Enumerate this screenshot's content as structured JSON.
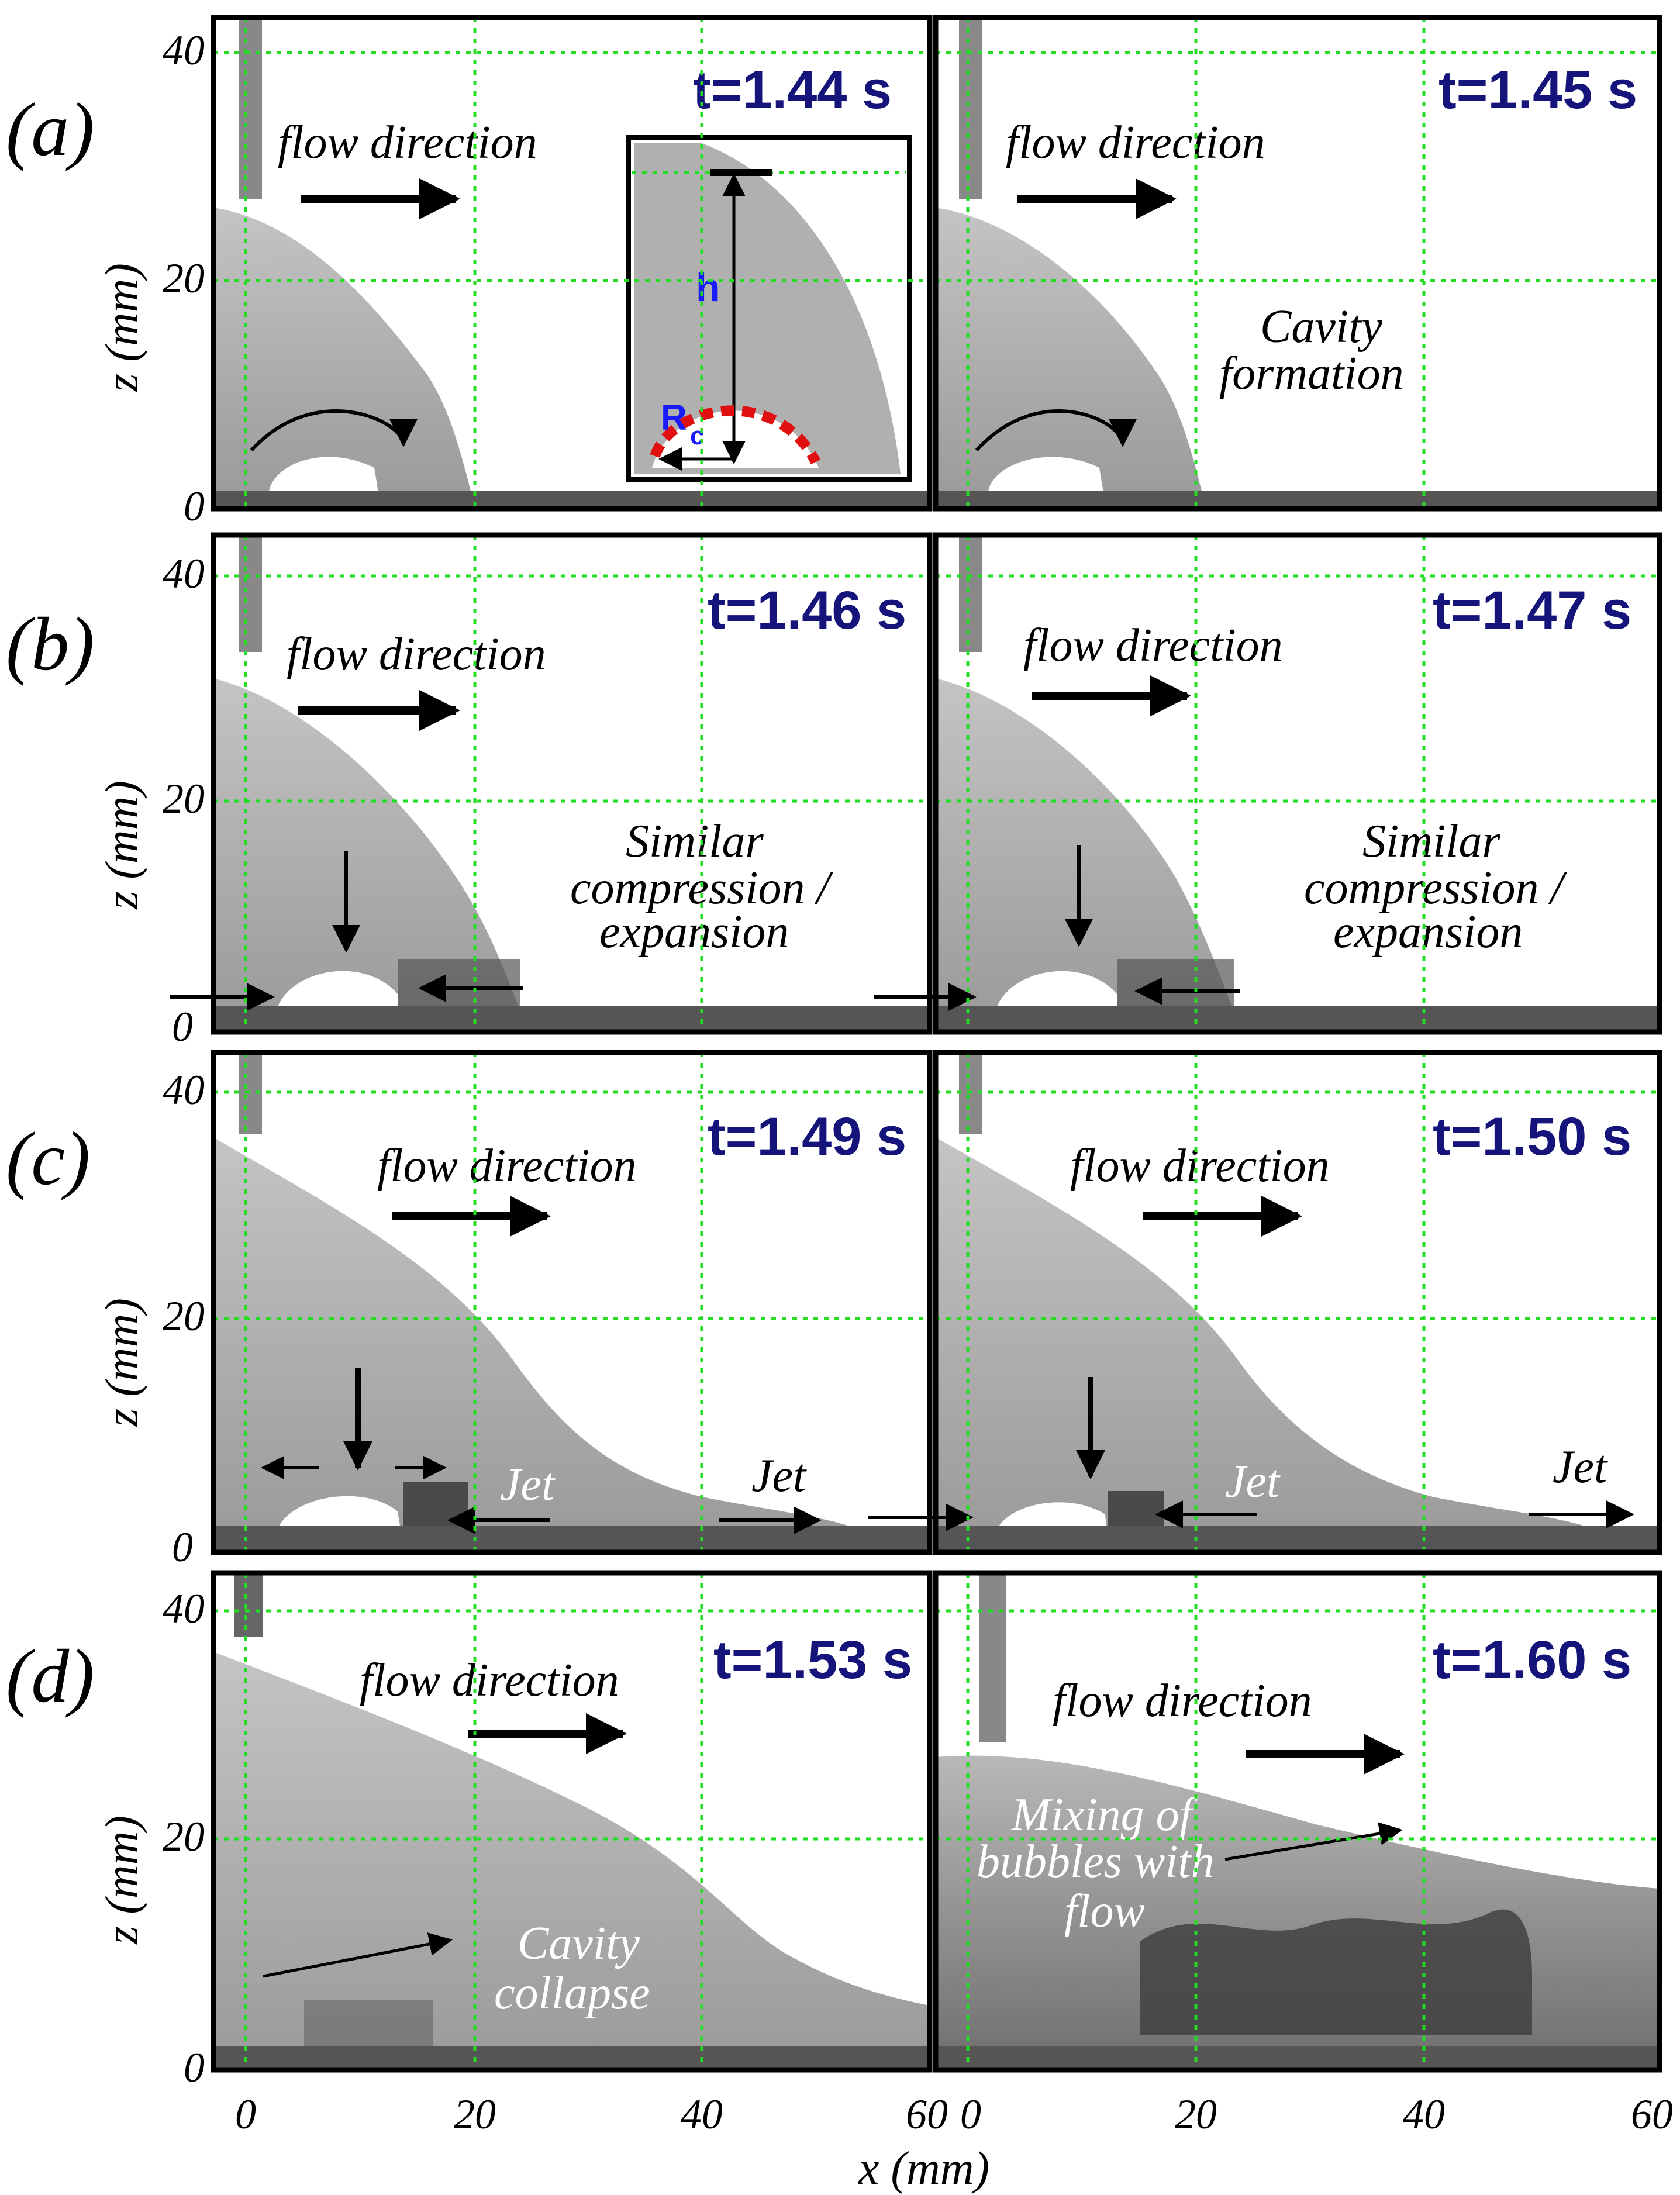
{
  "figure": {
    "rows": [
      {
        "label": "(a)",
        "times": [
          "t=1.44 s",
          "t=1.45 s"
        ]
      },
      {
        "label": "(b)",
        "times": [
          "t=1.46 s",
          "t=1.47 s"
        ]
      },
      {
        "label": "(c)",
        "times": [
          "t=1.49 s",
          "t=1.50 s"
        ]
      },
      {
        "label": "(d)",
        "times": [
          "t=1.53 s",
          "t=1.60 s"
        ]
      }
    ],
    "flow_label": "flow direction",
    "y_axis_label": "z (mm)",
    "x_axis_label": "x (mm)",
    "y_ticks": [
      "0",
      "20",
      "40"
    ],
    "x_ticks": [
      "0",
      "20",
      "40",
      "60"
    ],
    "annotations": {
      "inset_h": "h",
      "inset_r": "R",
      "inset_r_sub": "c",
      "cavity_formation_1": "Cavity",
      "cavity_formation_2": "formation",
      "similar_1": "Similar",
      "similar_2": "compression /",
      "similar_3": "expansion",
      "jet": "Jet",
      "collapse_1": "Cavity",
      "collapse_2": "collapse",
      "mixing_1": "Mixing of",
      "mixing_2": "bubbles with",
      "mixing_3": "flow"
    },
    "colors": {
      "time_text": "#14147a",
      "grid": "#22dd22",
      "inset_label": "#1a1aff",
      "cavity_outline": "#e01010"
    }
  }
}
